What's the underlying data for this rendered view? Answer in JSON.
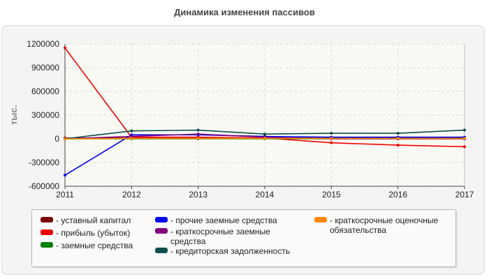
{
  "chart_data": {
    "type": "line",
    "title": "Динамика изменения пассивов",
    "xlabel": "",
    "ylabel": "тыс.",
    "x": [
      "2011",
      "2012",
      "2013",
      "2014",
      "2015",
      "2016",
      "2017"
    ],
    "ylim": [
      -600000,
      1200000
    ],
    "yticks": [
      "1200000",
      "900000",
      "600000",
      "300000",
      "0",
      "-300000",
      "-600000"
    ],
    "grid": true,
    "legend_position": "bottom",
    "legend_dash": "-",
    "series": [
      {
        "name": "уставный капитал",
        "color": "#7a0000",
        "values": [
          10000,
          10000,
          10000,
          10000,
          10000,
          10000,
          10000
        ]
      },
      {
        "name": "прибыль (убыток)",
        "color": "#ee0000",
        "values": [
          1150000,
          20000,
          20000,
          10000,
          -50000,
          -80000,
          -100000
        ]
      },
      {
        "name": "заемные средства",
        "color": "#008000",
        "values": [
          0,
          0,
          0,
          0,
          0,
          0,
          0
        ]
      },
      {
        "name": "прочие заемные средства",
        "color": "#0000ee",
        "values": [
          -460000,
          50000,
          50000,
          30000,
          20000,
          20000,
          20000
        ]
      },
      {
        "name": "краткосрочные заемные средства",
        "color": "#800080",
        "values": [
          0,
          30000,
          60000,
          20000,
          0,
          0,
          0
        ]
      },
      {
        "name": "кредиторская задолженность",
        "color": "#0f4d4a",
        "values": [
          0,
          100000,
          110000,
          60000,
          70000,
          70000,
          110000
        ]
      },
      {
        "name": "краткосрочные оценочные обязательства",
        "color": "#ff8800",
        "values": [
          0,
          5000,
          5000,
          5000,
          5000,
          5000,
          5000
        ]
      }
    ]
  }
}
